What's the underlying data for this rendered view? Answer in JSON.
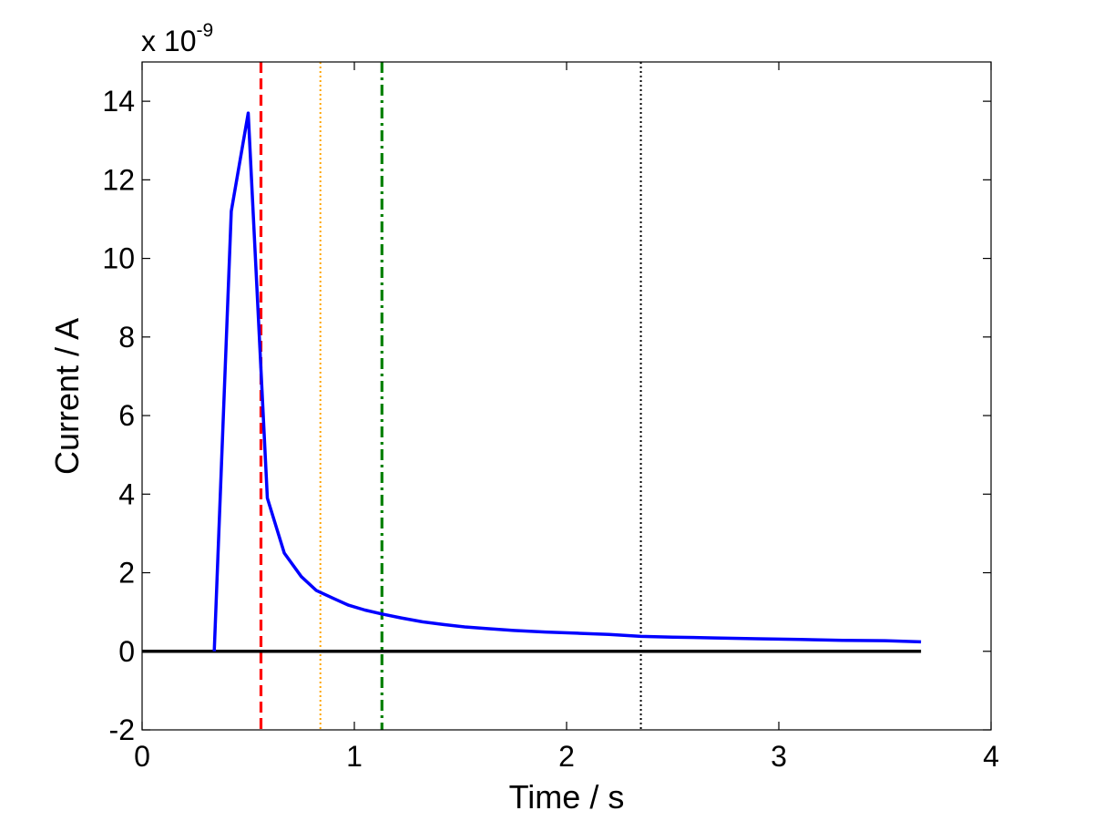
{
  "chart_data": {
    "type": "line",
    "title": "",
    "xlabel": "Time / s",
    "ylabel": "Current / A",
    "y_exponent_prefix": "x 10",
    "y_exponent_power": "-9",
    "xlim": [
      0,
      4
    ],
    "ylim": [
      -2,
      15
    ],
    "x_ticks": [
      0,
      1,
      2,
      3,
      4
    ],
    "x_tick_labels": [
      "0",
      "1",
      "2",
      "3",
      "4"
    ],
    "y_ticks": [
      -2,
      0,
      2,
      4,
      6,
      8,
      10,
      12,
      14
    ],
    "y_tick_labels": [
      "-2",
      "0",
      "2",
      "4",
      "6",
      "8",
      "10",
      "12",
      "14"
    ],
    "grid": false,
    "legend": "none",
    "colors": {
      "current": "#0000ff",
      "baseline": "#000000",
      "marker_red": "#ff0000",
      "marker_orange": "#ffa500",
      "marker_green": "#007f00",
      "marker_black": "#000000"
    },
    "series": [
      {
        "x": [
          0.34,
          0.42,
          0.5,
          0.59,
          0.67,
          0.75,
          0.82,
          0.9,
          0.97,
          1.05,
          1.13,
          1.22,
          1.32,
          1.42,
          1.52,
          1.62,
          1.75,
          1.9,
          2.05,
          2.2,
          2.35,
          2.5,
          2.7,
          2.9,
          3.1,
          3.3,
          3.5,
          3.67
        ],
        "y": [
          0.0,
          11.2,
          13.7,
          3.9,
          2.5,
          1.9,
          1.55,
          1.35,
          1.18,
          1.05,
          0.95,
          0.85,
          0.75,
          0.68,
          0.62,
          0.58,
          0.53,
          0.49,
          0.46,
          0.43,
          0.38,
          0.36,
          0.34,
          0.32,
          0.3,
          0.28,
          0.27,
          0.24
        ]
      }
    ],
    "baseline": {
      "y": 0,
      "x_range": [
        0,
        3.67
      ]
    },
    "vertical_markers": [
      {
        "x": 0.56,
        "style": "dashed",
        "color": "#ff0000"
      },
      {
        "x": 0.84,
        "style": "dotted",
        "color": "#ffa500"
      },
      {
        "x": 1.13,
        "style": "dashdot",
        "color": "#007f00"
      },
      {
        "x": 2.35,
        "style": "dotted",
        "color": "#000000"
      }
    ]
  }
}
